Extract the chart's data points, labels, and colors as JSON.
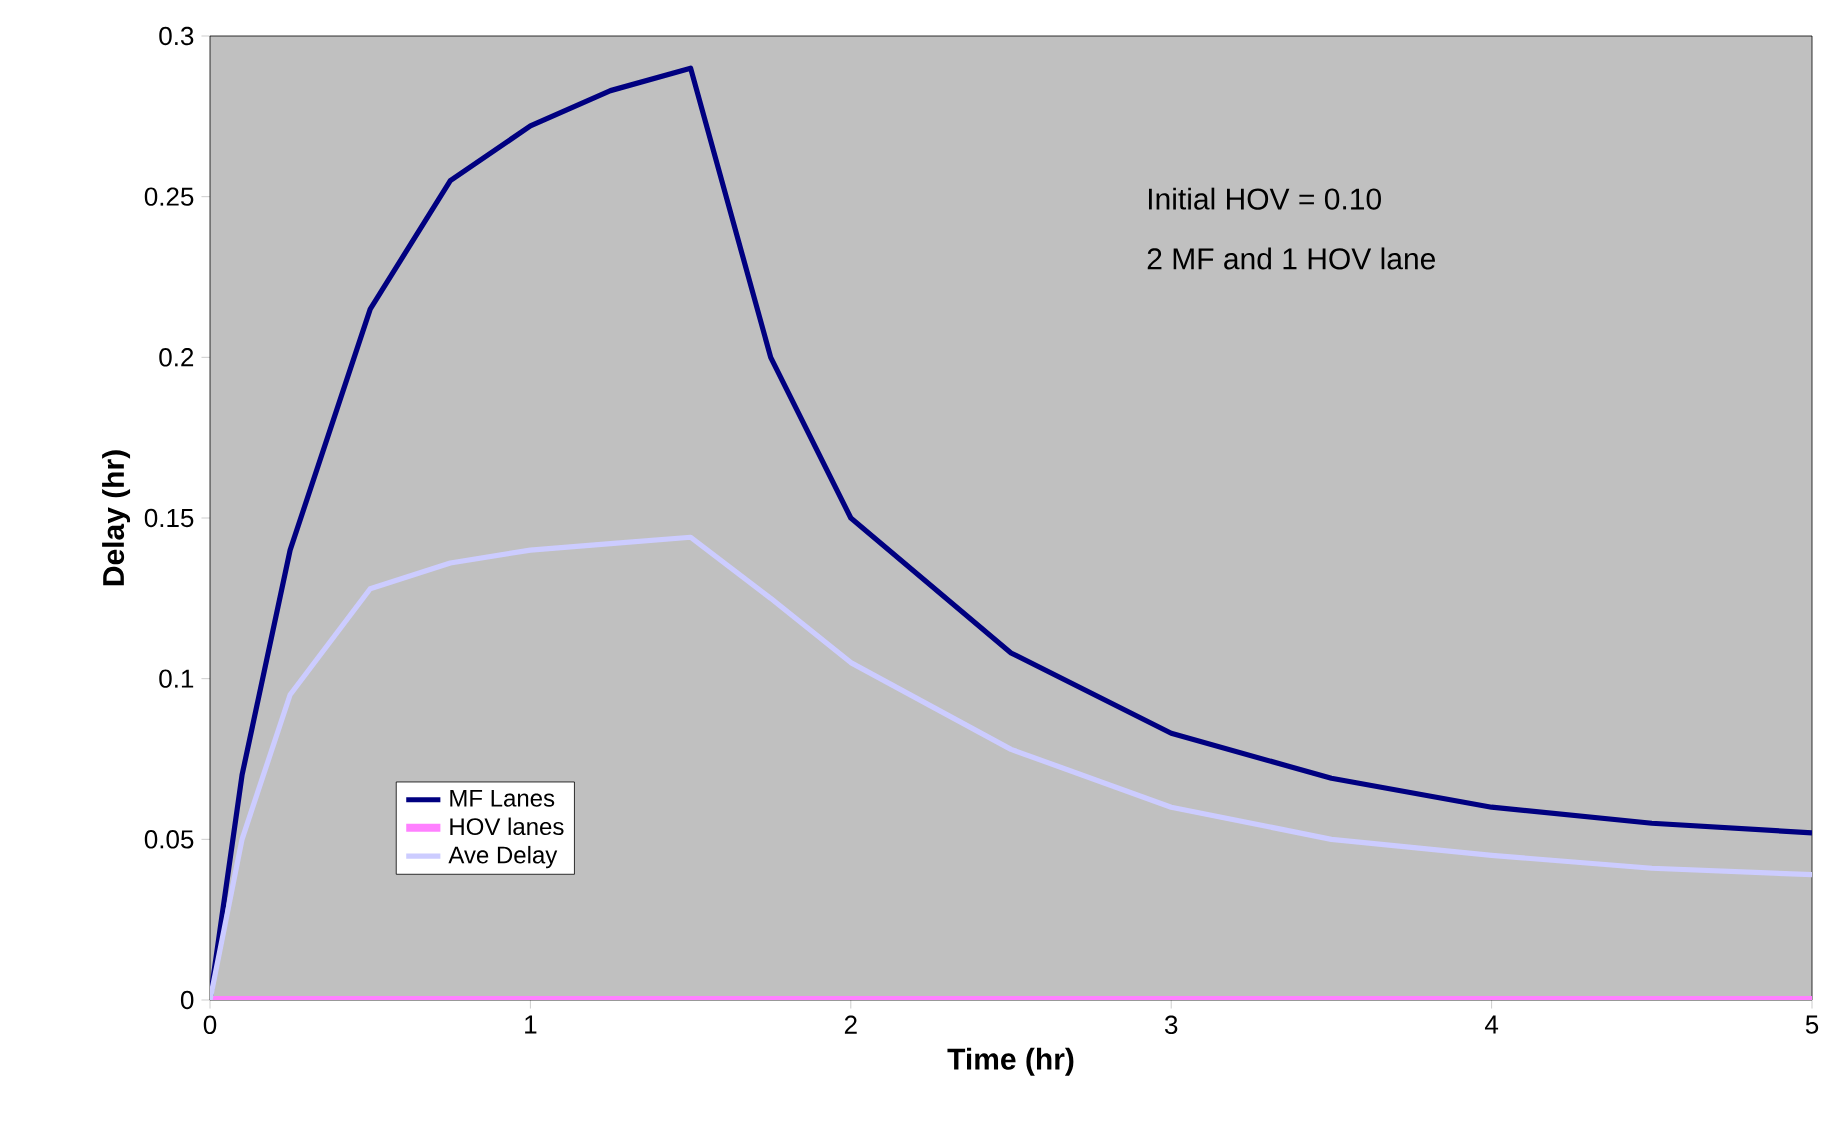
{
  "chart_data": {
    "type": "line",
    "xlabel": "Time (hr)",
    "ylabel": "Delay (hr)",
    "annotations": [
      "Initial HOV = 0.10",
      "2 MF and 1 HOV lane"
    ],
    "xlim": [
      0,
      5
    ],
    "ylim": [
      0,
      0.3
    ],
    "xticks": [
      0,
      1,
      2,
      3,
      4,
      5
    ],
    "yticks": [
      0,
      0.05,
      0.1,
      0.15,
      0.2,
      0.25,
      0.3
    ],
    "grid": false,
    "legend": "left",
    "marker": "none",
    "line_style": "solid",
    "series": [
      {
        "name": "MF Lanes",
        "color": "#000080",
        "x": [
          0,
          0.1,
          0.25,
          0.5,
          0.75,
          1,
          1.25,
          1.5,
          1.75,
          2,
          2.5,
          3,
          3.5,
          4,
          4.5,
          5
        ],
        "values": [
          0,
          0.07,
          0.14,
          0.215,
          0.255,
          0.272,
          0.283,
          0.29,
          0.2,
          0.15,
          0.108,
          0.083,
          0.069,
          0.06,
          0.055,
          0.052
        ]
      },
      {
        "name": "HOV lanes",
        "color": "#ff80ff",
        "x": [
          0,
          5
        ],
        "values": [
          0,
          0
        ]
      },
      {
        "name": "Ave Delay",
        "color": "#ccccff",
        "x": [
          0,
          0.1,
          0.25,
          0.5,
          0.75,
          1,
          1.25,
          1.5,
          1.75,
          2,
          2.5,
          3,
          3.5,
          4,
          4.5,
          5
        ],
        "values": [
          0,
          0.05,
          0.095,
          0.128,
          0.136,
          0.14,
          0.142,
          0.144,
          0.125,
          0.105,
          0.078,
          0.06,
          0.05,
          0.045,
          0.041,
          0.039
        ]
      }
    ]
  }
}
